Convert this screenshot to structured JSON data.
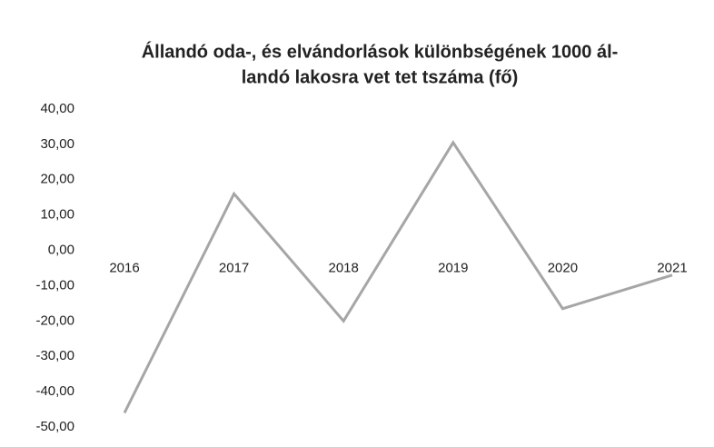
{
  "chart_data": {
    "type": "line",
    "title": [
      "Állandó oda-, és elvándorlások különbségének 1000 ál-",
      "landó lakosra vet tet tszáma (fő)"
    ],
    "categories": [
      "2016",
      "2017",
      "2018",
      "2019",
      "2020",
      "2021"
    ],
    "series": [
      {
        "name": null,
        "color": "#a6a6a6",
        "values": [
          -46,
          16,
          -20,
          30.5,
          -16.5,
          -7
        ]
      }
    ],
    "ylim": [
      -50,
      40
    ],
    "yticks": [
      {
        "value": -50,
        "label": "-50,00"
      },
      {
        "value": -40,
        "label": "-40,00"
      },
      {
        "value": -30,
        "label": "-30,00"
      },
      {
        "value": -20,
        "label": "-20,00"
      },
      {
        "value": -10,
        "label": "-10,00"
      },
      {
        "value": 0,
        "label": "0,00"
      },
      {
        "value": 10,
        "label": "10,00"
      },
      {
        "value": 20,
        "label": "20,00"
      },
      {
        "value": 30,
        "label": "30,00"
      },
      {
        "value": 40,
        "label": "40,00"
      }
    ],
    "grid": false
  }
}
